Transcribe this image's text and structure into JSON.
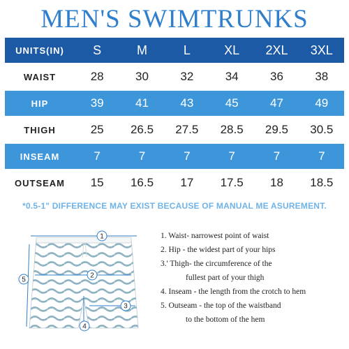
{
  "title": "MEN'S SWIMTRUNKS",
  "table": {
    "header_label": "UNITS(IN)",
    "sizes": [
      "S",
      "M",
      "L",
      "XL",
      "2XL",
      "3XL"
    ],
    "rows": [
      {
        "label": "WAIST",
        "values": [
          "28",
          "30",
          "32",
          "34",
          "36",
          "38"
        ]
      },
      {
        "label": "HIP",
        "values": [
          "39",
          "41",
          "43",
          "45",
          "47",
          "49"
        ]
      },
      {
        "label": "THIGH",
        "values": [
          "25",
          "26.5",
          "27.5",
          "28.5",
          "29.5",
          "30.5"
        ]
      },
      {
        "label": "INSEAM",
        "values": [
          "7",
          "7",
          "7",
          "7",
          "7",
          "7"
        ]
      },
      {
        "label": "OUTSEAM",
        "values": [
          "15",
          "16.5",
          "17",
          "17.5",
          "18",
          "18.5"
        ]
      }
    ]
  },
  "note": "*0.5-1\" DIFFERENCE MAY EXIST BECAUSE OF MANUAL ME ASUREMENT.",
  "markers": [
    "1",
    "2",
    "3",
    "4",
    "5"
  ],
  "legend": {
    "l1": "1. Waist- narrowest point of waist",
    "l2": "2. Hip - the widest part of your hips",
    "l3a": "3.' Thigh- the circumference of the",
    "l3b": "fullest part of your thigh",
    "l4": "4. Inseam - the length from the crotch to hem",
    "l5a": "5. Outseam - the top of the waistband",
    "l5b": "to the bottom of the hem"
  },
  "colors": {
    "title": "#2f7fcc",
    "header": "#1d5aa6",
    "blue_row": "#3e96da",
    "note": "#6fb3e8",
    "wave": "#8fb3c2"
  }
}
